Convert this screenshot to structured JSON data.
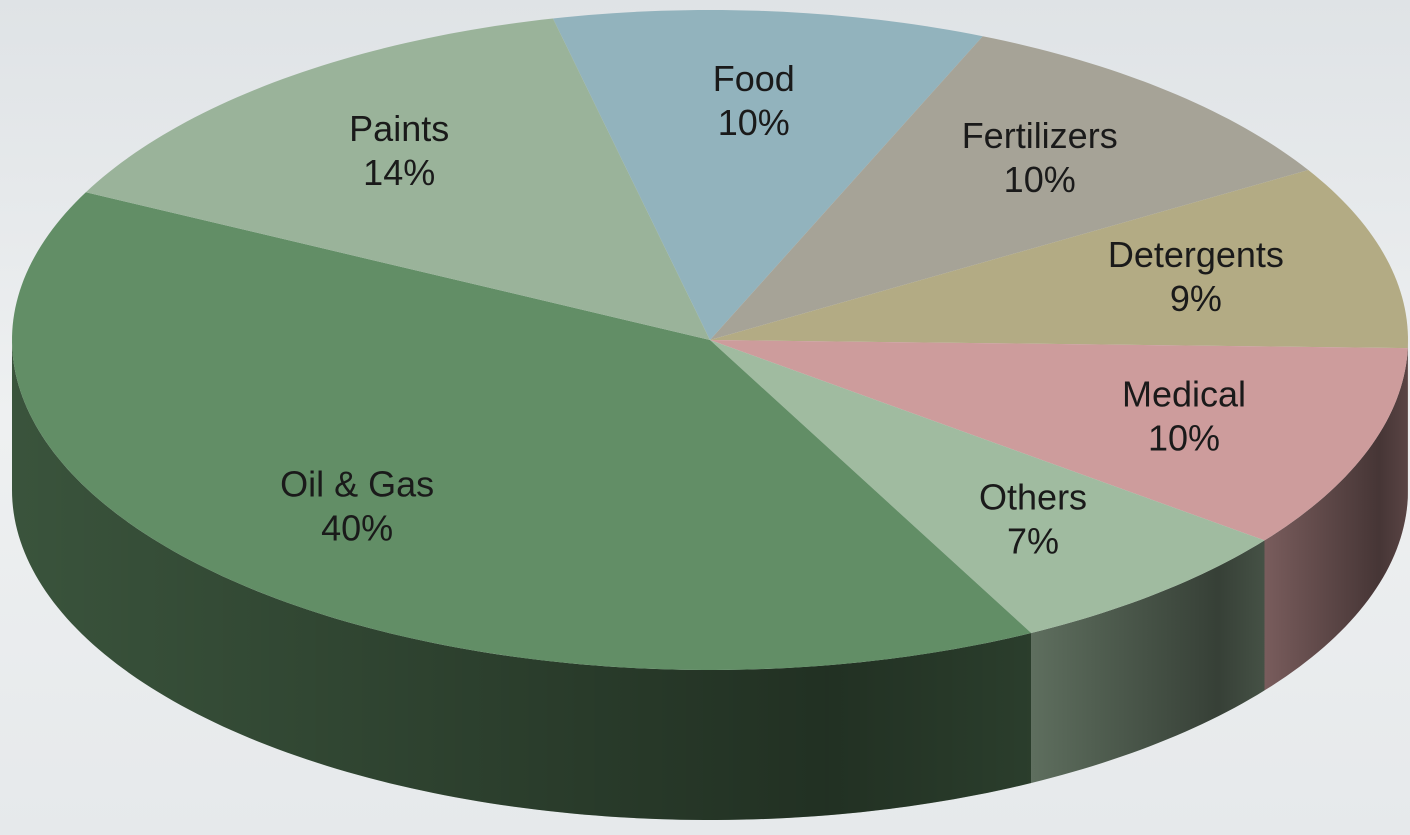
{
  "chart_data": {
    "type": "pie",
    "categories": [
      "Food",
      "Fertilizers",
      "Detergents",
      "Medical",
      "Others",
      "Oil & Gas",
      "Paints"
    ],
    "values": [
      10,
      10,
      9,
      10,
      7,
      40,
      14
    ],
    "value_labels": [
      "10%",
      "10%",
      "9%",
      "10%",
      "7%",
      "40%",
      "14%"
    ],
    "colors": [
      "#92b3bd",
      "#a6a397",
      "#b3ab84",
      "#cd9c9c",
      "#a0bba0",
      "#628e66",
      "#9ab39a"
    ]
  }
}
